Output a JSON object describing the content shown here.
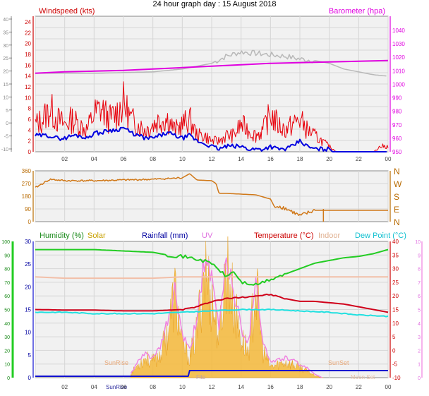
{
  "title": "24 hour graph day : 15 August 2018",
  "colors": {
    "wind": "#e8000b",
    "wind_avg": "#0000e0",
    "wind_label": "#cc0000",
    "baro": "#e000e0",
    "baro_gray": "#b8b8b8",
    "dir": "#d07818",
    "dir_label": "#b86a00",
    "humidity": "#22cc22",
    "humidity_label": "#1a8a1a",
    "solar": "#f5b83a",
    "solar_label": "#c8a000",
    "rain": "#1010d0",
    "rain_label": "#0000a0",
    "uv": "#f080e0",
    "uv_label": "#e070e0",
    "temperature": "#d0001a",
    "temperature_label": "#cc0000",
    "indoor": "#f2bfa8",
    "indoor_label": "#e0b090",
    "dewpoint": "#22e0e0",
    "dewpoint_label": "#10c0d0"
  },
  "chart_data": [
    {
      "type": "line",
      "name": "wind-baro",
      "title": "",
      "left_label": "Windspeed (kts)",
      "right_label": "Barometer (hpa)",
      "x_ticks": [
        "02",
        "04",
        "06",
        "08",
        "10",
        "12",
        "14",
        "16",
        "18",
        "20",
        "22",
        "00"
      ],
      "left_ticks": [
        24,
        22,
        20,
        18,
        16,
        14,
        12,
        10,
        8,
        6,
        4,
        2,
        0
      ],
      "outer_left_ticks": [
        40,
        35,
        30,
        25,
        20,
        15,
        10,
        5,
        0,
        -5,
        -10
      ],
      "right_ticks": [
        1040,
        1030,
        1020,
        1010,
        1000,
        990,
        980,
        970,
        960,
        950
      ],
      "ylim_left": [
        0,
        24
      ],
      "ylim_baro": [
        950,
        1045
      ],
      "grid": true,
      "wind_gust": {
        "x": [
          0,
          0.5,
          1,
          1.5,
          2,
          2.5,
          3,
          3.5,
          4,
          4.5,
          5,
          5.5,
          6,
          6.5,
          7,
          7.5,
          8,
          8.5,
          9,
          9.5,
          10,
          10.5,
          11,
          11.5,
          12,
          12.5,
          13,
          13.5,
          14,
          14.5,
          15,
          15.5,
          16,
          16.5,
          17,
          17.5,
          18,
          18.5,
          19,
          19.5,
          20,
          20.5,
          21,
          21.5,
          22,
          22.5,
          23,
          23.5,
          24
        ],
        "values": [
          5,
          6,
          8,
          6,
          5,
          6,
          5,
          4,
          7,
          8,
          6,
          7,
          9,
          6,
          5,
          4,
          5,
          6,
          6,
          4,
          5,
          6,
          3,
          3,
          2,
          2,
          3,
          3,
          5,
          4,
          3,
          4,
          7,
          5,
          4,
          5,
          6,
          4,
          3,
          2,
          1,
          0,
          0,
          0,
          0,
          0,
          0,
          1,
          1
        ]
      },
      "wind_avg": {
        "x": [
          0,
          0.5,
          1,
          1.5,
          2,
          2.5,
          3,
          3.5,
          4,
          4.5,
          5,
          5.5,
          6,
          6.5,
          7,
          7.5,
          8,
          8.5,
          9,
          9.5,
          10,
          10.5,
          11,
          11.5,
          12,
          12.5,
          13,
          13.5,
          14,
          14.5,
          15,
          15.5,
          16,
          16.5,
          17,
          17.5,
          18,
          18.5,
          19,
          19.5,
          20,
          20.5,
          21,
          21.5,
          22,
          22.5,
          23,
          23.5,
          24
        ],
        "values": [
          3,
          3,
          3,
          2.5,
          2.5,
          3,
          3,
          2.5,
          3.5,
          3.5,
          4,
          4,
          4.5,
          3.5,
          3,
          2.5,
          2.5,
          3,
          3.5,
          3,
          2.5,
          3,
          2,
          1.5,
          1,
          0.5,
          1,
          1,
          1,
          0.5,
          0.5,
          0.5,
          1,
          0.5,
          0.5,
          1,
          2,
          1,
          0.5,
          0.5,
          0.5,
          0,
          0,
          0,
          0,
          0,
          0,
          0,
          0
        ]
      },
      "baro": {
        "x": [
          0,
          2,
          4,
          6,
          8,
          10,
          12,
          14,
          16,
          18,
          20,
          22,
          24
        ],
        "values": [
          1005,
          1006,
          1006.5,
          1007,
          1008,
          1009,
          1010,
          1011,
          1012,
          1012.5,
          1013,
          1013.5,
          1014
        ]
      },
      "baro_gray": {
        "x": [
          0,
          2,
          4,
          6,
          8,
          10,
          11,
          12,
          13,
          14,
          15,
          16,
          17,
          18,
          19,
          20,
          21,
          22,
          23,
          24
        ],
        "values": [
          1005,
          1005,
          1005,
          1005.5,
          1006,
          1008,
          1010,
          1012,
          1017,
          1020,
          1019,
          1018,
          1017,
          1015,
          1014,
          1012,
          1008,
          1006,
          1004,
          1003
        ]
      }
    },
    {
      "type": "line",
      "name": "wind-direction",
      "title": "",
      "x_ticks": [
        "02",
        "04",
        "06",
        "08",
        "10",
        "12",
        "14",
        "16",
        "18",
        "20",
        "22",
        "00"
      ],
      "left_ticks": [
        360,
        270,
        180,
        90,
        0
      ],
      "right_ticks": [
        "N",
        "W",
        "S",
        "E",
        "N"
      ],
      "ylim": [
        0,
        360
      ],
      "grid": true,
      "direction": {
        "x": [
          0,
          0.5,
          1,
          2,
          4,
          6,
          8,
          10,
          10.5,
          11,
          12,
          12.3,
          12.5,
          13,
          14,
          15,
          16,
          16.3,
          16.6,
          17,
          17.5,
          18,
          18.5,
          19,
          20,
          22,
          24
        ],
        "values": [
          240,
          270,
          300,
          290,
          290,
          295,
          300,
          310,
          340,
          295,
          290,
          270,
          200,
          200,
          195,
          190,
          160,
          100,
          110,
          95,
          70,
          40,
          60,
          80,
          80,
          80,
          80
        ]
      }
    },
    {
      "type": "line",
      "name": "humidity-temp-solar",
      "title": "",
      "labels": [
        "Humidity (%)",
        "Solar",
        "Rainfall (mm)",
        "UV",
        "Temperature (°C)",
        "Indoor",
        "Dew Point (°C)"
      ],
      "x_ticks": [
        "02",
        "04",
        "06",
        "08",
        "10",
        "12",
        "14",
        "16",
        "18",
        "20",
        "22",
        "00"
      ],
      "humidity_ticks": [
        100,
        90,
        80,
        70,
        60,
        50,
        40,
        30,
        20,
        10,
        0
      ],
      "rain_ticks": [
        30,
        25,
        20,
        15,
        10,
        5,
        0
      ],
      "temp_ticks": [
        40,
        35,
        30,
        25,
        20,
        15,
        10,
        5,
        0,
        -5,
        -10
      ],
      "uv_ticks": [
        10,
        9,
        8,
        7,
        6,
        5,
        4,
        3,
        2,
        1,
        0
      ],
      "ylim_humidity": [
        0,
        100
      ],
      "ylim_temp": [
        -10,
        40
      ],
      "ylim_uv": [
        0,
        10
      ],
      "grid": true,
      "annotations": [
        "SunRise",
        "SunSet",
        "SunRise",
        "Moon Set",
        "Fits"
      ],
      "humidity": {
        "x": [
          0,
          2,
          4,
          6,
          8,
          9,
          10,
          11,
          12,
          13,
          13.5,
          14,
          15,
          15.5,
          16,
          17,
          18,
          19,
          20,
          21,
          22,
          23,
          24
        ],
        "values": [
          94,
          94,
          94,
          93,
          92,
          90,
          89,
          87,
          84,
          74,
          78,
          70,
          68,
          70,
          72,
          76,
          80,
          84,
          86,
          88,
          89,
          91,
          94
        ]
      },
      "temperature": {
        "x": [
          0,
          2,
          4,
          6,
          8,
          10,
          11,
          12,
          13,
          14,
          15,
          16,
          17,
          18,
          19,
          20,
          21,
          22,
          23,
          24
        ],
        "values": [
          15,
          14.8,
          14.8,
          14.5,
          14.5,
          15,
          16,
          18,
          19,
          19.5,
          20,
          20.5,
          19,
          18,
          18,
          17.5,
          17,
          16,
          15,
          14
        ]
      },
      "indoor": {
        "x": [
          0,
          2,
          4,
          6,
          8,
          10,
          12,
          14,
          16,
          18,
          20,
          22,
          24
        ],
        "values": [
          27,
          26.5,
          26.5,
          26.5,
          26.5,
          27,
          27,
          27,
          27,
          27,
          27,
          27,
          27
        ]
      },
      "dewpoint": {
        "x": [
          0,
          2,
          4,
          6,
          8,
          10,
          12,
          14,
          16,
          18,
          20,
          22,
          24
        ],
        "values": [
          14,
          14,
          13.5,
          13.5,
          13.5,
          14,
          14.5,
          15,
          15,
          14.5,
          14,
          13,
          12.5
        ]
      },
      "solar": {
        "x": [
          6.5,
          7,
          7.5,
          8,
          8.5,
          9,
          9.5,
          10,
          10.5,
          11,
          11.5,
          12,
          12.5,
          13,
          13.5,
          14,
          14.5,
          15,
          15.5,
          16,
          16.5,
          17,
          17.5,
          18,
          18.5,
          19,
          19.5
        ],
        "values": [
          0.3,
          1.0,
          1.5,
          1.2,
          1.8,
          3.5,
          6.5,
          2.5,
          1.5,
          3.5,
          8.5,
          6.0,
          3.0,
          8.8,
          5.5,
          3.0,
          2.0,
          7.0,
          2.0,
          0.8,
          1.0,
          1.2,
          1.0,
          0.8,
          0.5,
          0.2,
          0
        ]
      },
      "uv": {
        "x": [
          6.5,
          7,
          7.5,
          8,
          8.5,
          9,
          9.5,
          10,
          10.5,
          11,
          11.5,
          12,
          12.5,
          13,
          13.5,
          14,
          14.5,
          15,
          15.5,
          16,
          16.5,
          17,
          17.5,
          18,
          18.5,
          19,
          19.5
        ],
        "values": [
          0.3,
          1.2,
          1.8,
          1.5,
          2.2,
          4.2,
          6.5,
          3.2,
          2.0,
          4.5,
          9.0,
          7.2,
          3.8,
          9.2,
          6.5,
          3.8,
          2.6,
          7.8,
          2.6,
          1.2,
          1.3,
          1.5,
          1.3,
          1.0,
          0.7,
          0.3,
          0
        ]
      },
      "rainfall": {
        "x": [
          0,
          10.4,
          10.5,
          24
        ],
        "values": [
          0,
          0,
          0.8,
          0.8
        ]
      }
    }
  ]
}
